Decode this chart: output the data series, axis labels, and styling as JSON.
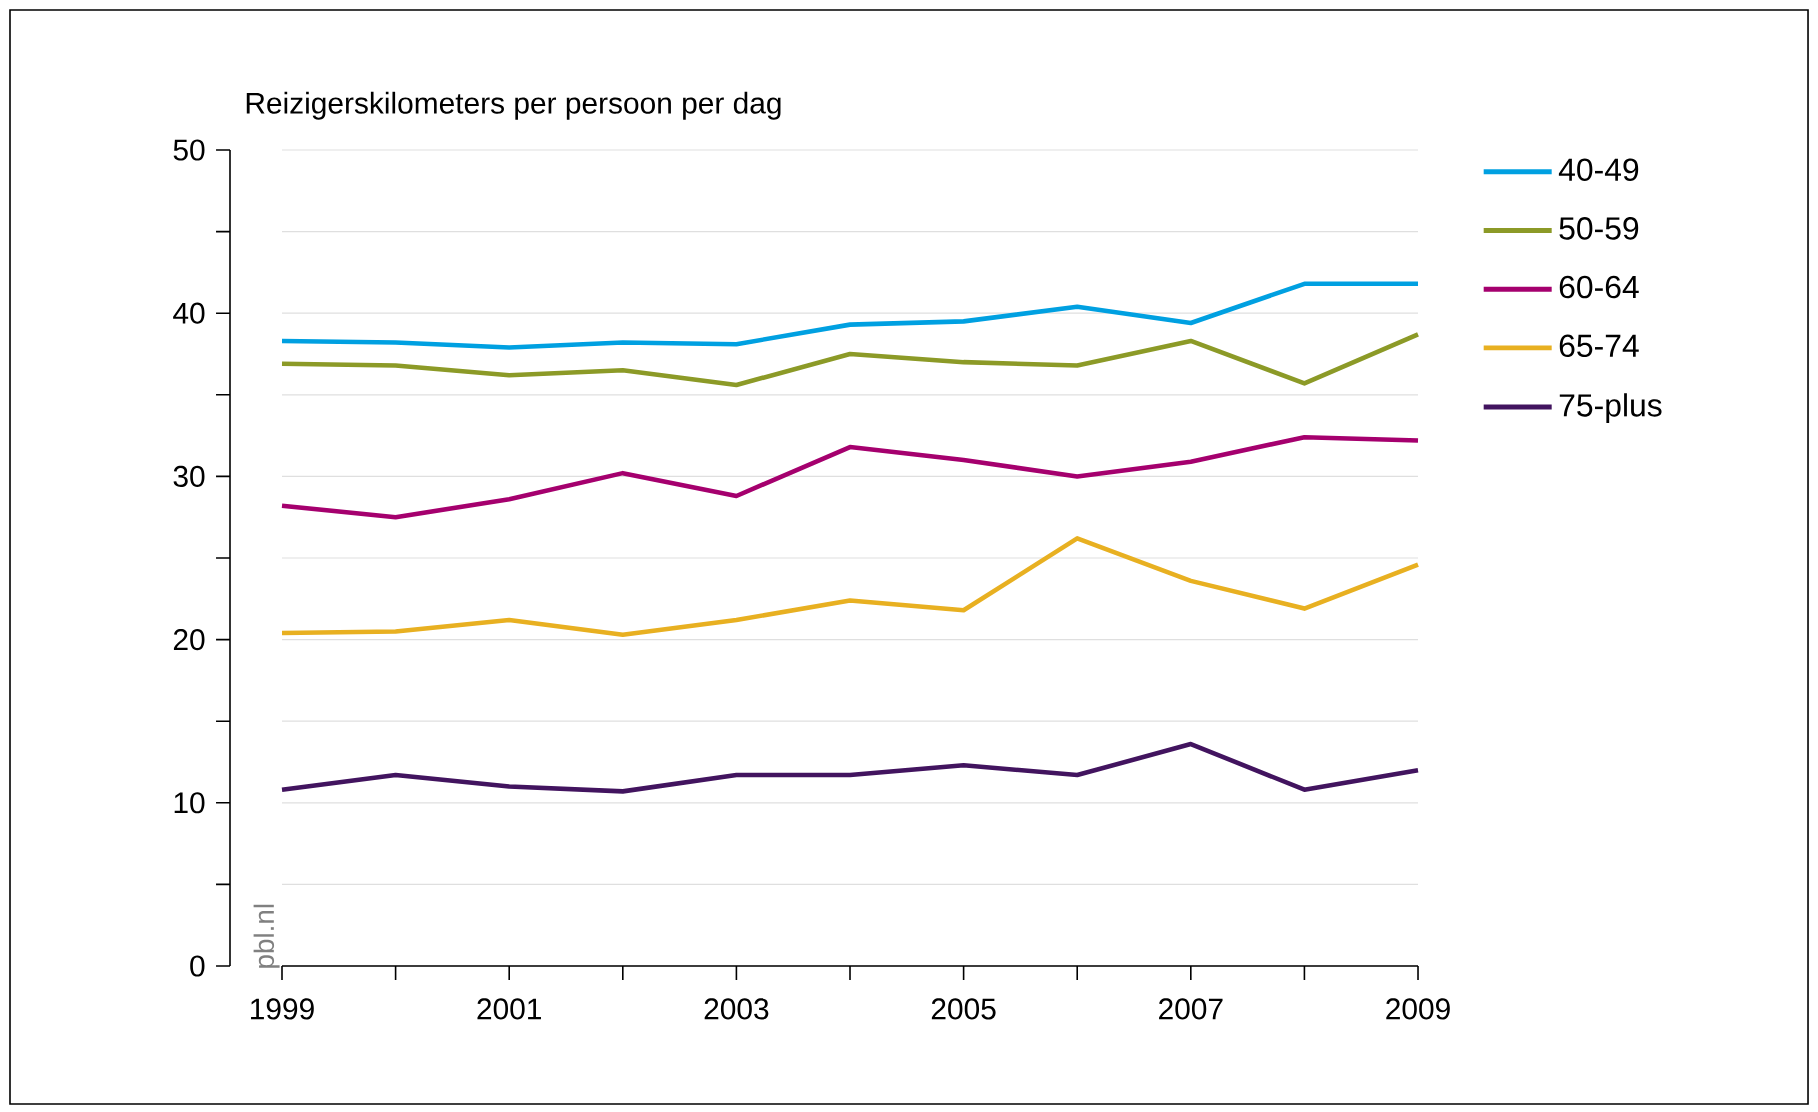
{
  "chart_data": {
    "type": "line",
    "ylabel": "Reizigerskilometers per persoon per dag",
    "annotations": [
      "pbl.nl"
    ],
    "x": [
      1999,
      2000,
      2001,
      2002,
      2003,
      2004,
      2005,
      2006,
      2007,
      2008,
      2009
    ],
    "series": [
      {
        "name": "40-49",
        "color": "#00a0e1",
        "values": [
          38.3,
          38.2,
          37.9,
          38.2,
          38.1,
          39.3,
          39.5,
          40.4,
          39.4,
          41.8,
          41.8
        ]
      },
      {
        "name": "50-59",
        "color": "#8c9a27",
        "values": [
          36.9,
          36.8,
          36.2,
          36.5,
          35.6,
          37.5,
          37.0,
          36.8,
          38.3,
          35.7,
          38.7
        ]
      },
      {
        "name": "60-64",
        "color": "#a5006e",
        "values": [
          28.2,
          27.5,
          28.6,
          30.2,
          28.8,
          31.8,
          31.0,
          30.0,
          30.9,
          32.4,
          32.2
        ]
      },
      {
        "name": "65-74",
        "color": "#e8b021",
        "values": [
          20.4,
          20.5,
          21.2,
          20.3,
          21.2,
          22.4,
          21.8,
          26.2,
          23.6,
          21.9,
          24.6
        ]
      },
      {
        "name": "75-plus",
        "color": "#42145f",
        "values": [
          10.8,
          11.7,
          11.0,
          10.7,
          11.7,
          11.7,
          12.3,
          11.7,
          13.6,
          10.8,
          12.0
        ]
      }
    ],
    "xlim": [
      1999,
      2009
    ],
    "xticks": [
      1999,
      {
        "value": 2000,
        "label": null
      },
      2001,
      {
        "value": 2002,
        "label": null
      },
      2003,
      {
        "value": 2004,
        "label": null
      },
      2005,
      {
        "value": 2006,
        "label": null
      },
      2007,
      {
        "value": 2008,
        "label": null
      },
      2009
    ],
    "ylim": [
      0,
      50
    ],
    "yticks": [
      0,
      {
        "value": 5,
        "label": null
      },
      10,
      {
        "value": 15,
        "label": null
      },
      20,
      {
        "value": 25,
        "label": null
      },
      30,
      {
        "value": 35,
        "label": null
      },
      40,
      {
        "value": 45,
        "label": null
      },
      50
    ],
    "grid": "y",
    "legend": "right",
    "marker": "none",
    "line_style": "solid"
  }
}
